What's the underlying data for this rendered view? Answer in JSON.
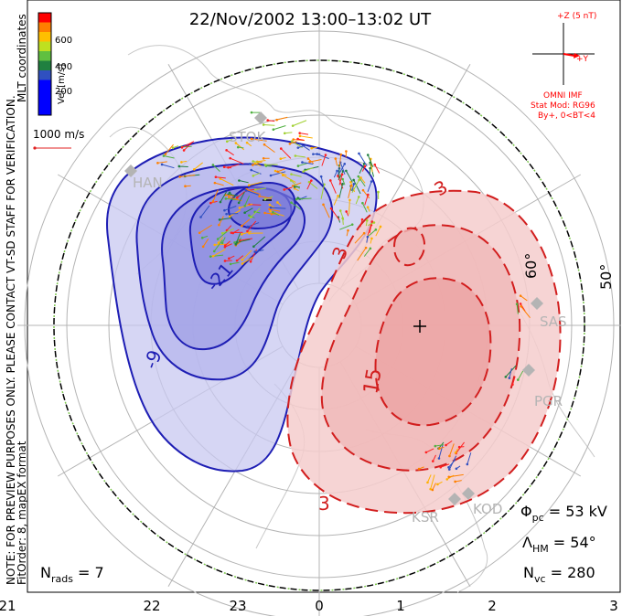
{
  "title": "22/Nov/2002  13:00–13:02  UT",
  "side_note_line1": "NOTE: FOR PREVIEW PURPOSES ONLY. PLEASE CONTACT VT-SD STAFF FOR VERIFICATION.",
  "side_note_line2": "FitOrder: 8, mapEX format",
  "mlt_label": "MLT coordinates",
  "velocity_bar": {
    "label": "Vel [m/s]",
    "ticks": [
      "600",
      "400",
      "200"
    ],
    "colors": [
      "#ff0000",
      "#ff7f00",
      "#ffbf00",
      "#bfe020",
      "#60c040",
      "#208040",
      "#3050c0",
      "#0000ff"
    ]
  },
  "reference_vector": "1000 m/s",
  "imf": {
    "z_label": "+Z (5 nT)",
    "y_label": "+Y",
    "source": "OMNI IMF",
    "model": "Stat Mod: RG96",
    "condition": "By+, 0<BT<4"
  },
  "latitude_labels": [
    "60°",
    "50°"
  ],
  "radar_labels": [
    "SAS",
    "PGR",
    "KSR",
    "KOD",
    "STOK",
    "HAN"
  ],
  "contour_labels": [
    "-9",
    "-21",
    "3",
    "3",
    "15",
    "3"
  ],
  "stats": {
    "phi_pc_label": "Φ",
    "phi_pc_sub": "pc",
    "phi_pc_value": " = 53 kV",
    "lambda_hm_label": "Λ",
    "lambda_hm_sub": "HM",
    "lambda_hm_value": " = 54°",
    "n_vc_label": "N",
    "n_vc_sub": "vc",
    "n_vc_value": " = 280",
    "n_rads_label": "N",
    "n_rads_sub": "rads",
    "n_rads_value": " = 7"
  },
  "mlt_ticks": [
    "21",
    "22",
    "23",
    "0",
    "1",
    "2",
    "3"
  ],
  "colors": {
    "negative_fill": "#c8c8f0",
    "negative_line": "#1e1eb4",
    "positive_fill": "#f5cccc",
    "positive_line": "#d21e1e",
    "map_line": "#c8c8c8",
    "grid_line": "#b4b4b4",
    "imf_red": "#ff0000"
  }
}
